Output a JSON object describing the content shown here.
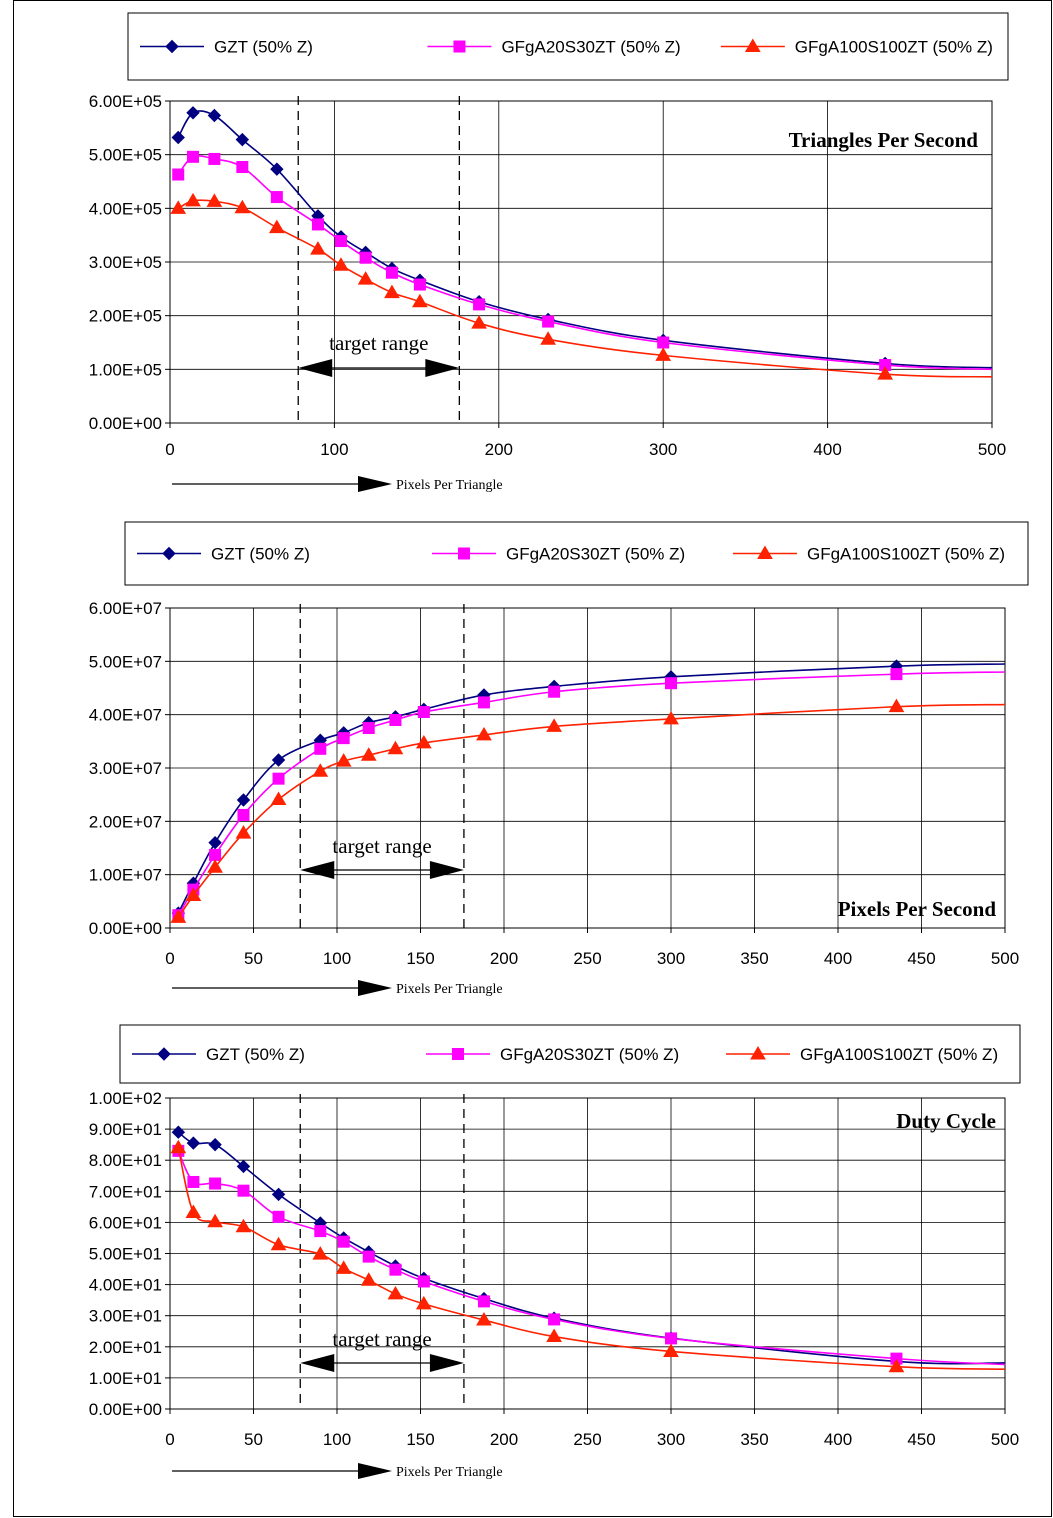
{
  "colors": {
    "series": [
      "#000080",
      "#FF00FF",
      "#FF2200"
    ],
    "grid": "#000000",
    "text": "#000000"
  },
  "chart_data": [
    {
      "type": "line",
      "title": "Triangles Per Second",
      "xlabel": "Pixels Per Triangle",
      "ylabel": "",
      "xlim": [
        0,
        500
      ],
      "ylim": [
        0,
        600000
      ],
      "xticks": [
        0,
        100,
        200,
        300,
        400,
        500
      ],
      "xtick_labels": [
        "0",
        "100",
        "200",
        "300",
        "400",
        "500"
      ],
      "yticks": [
        0,
        100000,
        200000,
        300000,
        400000,
        500000,
        600000
      ],
      "ytick_labels": [
        "0.00E+00",
        "1.00E+05",
        "2.00E+05",
        "3.00E+05",
        "4.00E+05",
        "5.00E+05",
        "6.00E+05"
      ],
      "grid": true,
      "legend": "top",
      "target_range": {
        "label": "target range",
        "from": 78,
        "to": 176
      },
      "x": [
        5,
        14,
        27,
        44,
        65,
        90,
        104,
        119,
        135,
        152,
        188,
        230,
        300,
        435
      ],
      "series": [
        {
          "name": "GZT (50% Z)",
          "marker": "diamond",
          "values": [
            532000,
            578000,
            573000,
            528000,
            473000,
            386000,
            347000,
            318000,
            288000,
            266000,
            226000,
            193000,
            154000,
            111000
          ],
          "tail": 103000
        },
        {
          "name": "GFgA20S30ZT (50% Z)",
          "marker": "square",
          "values": [
            463000,
            496000,
            492000,
            477000,
            421000,
            370000,
            339000,
            308000,
            280000,
            258000,
            221000,
            189000,
            150000,
            108000
          ],
          "tail": 100000
        },
        {
          "name": "GFgA100S100ZT (50% Z)",
          "marker": "triangle",
          "values": [
            400000,
            414000,
            413000,
            401000,
            364000,
            324000,
            294000,
            268000,
            243000,
            226000,
            186000,
            156000,
            126000,
            91000
          ],
          "tail": 86000
        }
      ]
    },
    {
      "type": "line",
      "title": "Pixels Per Second",
      "xlabel": "Pixels Per Triangle",
      "ylabel": "",
      "xlim": [
        0,
        500
      ],
      "ylim": [
        0,
        60000000
      ],
      "xticks": [
        0,
        50,
        100,
        150,
        200,
        250,
        300,
        350,
        400,
        450,
        500
      ],
      "xtick_labels": [
        "0",
        "50",
        "100",
        "150",
        "200",
        "250",
        "300",
        "350",
        "400",
        "450",
        "500"
      ],
      "yticks": [
        0,
        10000000,
        20000000,
        30000000,
        40000000,
        50000000,
        60000000
      ],
      "ytick_labels": [
        "0.00E+00",
        "1.00E+07",
        "2.00E+07",
        "3.00E+07",
        "4.00E+07",
        "5.00E+07",
        "6.00E+07"
      ],
      "grid": true,
      "legend": "top",
      "target_range": {
        "label": "target range",
        "from": 78,
        "to": 176
      },
      "x": [
        5,
        14,
        27,
        44,
        65,
        90,
        104,
        119,
        135,
        152,
        188,
        230,
        300,
        435
      ],
      "series": [
        {
          "name": "GZT (50% Z)",
          "marker": "diamond",
          "values": [
            2800000,
            8400000,
            16000000,
            24000000,
            31500000,
            35200000,
            36600000,
            38500000,
            39600000,
            41000000,
            43700000,
            45300000,
            47100000,
            49100000
          ],
          "tail": 49500000
        },
        {
          "name": "GFgA20S30ZT (50% Z)",
          "marker": "square",
          "values": [
            2400000,
            7200000,
            13700000,
            21200000,
            28000000,
            33600000,
            35600000,
            37500000,
            39000000,
            40500000,
            42300000,
            44300000,
            45900000,
            47600000
          ],
          "tail": 48000000
        },
        {
          "name": "GFgA100S100ZT (50% Z)",
          "marker": "triangle",
          "values": [
            2000000,
            6100000,
            11400000,
            17800000,
            24100000,
            29400000,
            31300000,
            32400000,
            33600000,
            34700000,
            36200000,
            37800000,
            39200000,
            41500000
          ],
          "tail": 41900000
        }
      ]
    },
    {
      "type": "line",
      "title": "Duty Cycle",
      "xlabel": "Pixels Per Triangle",
      "ylabel": "",
      "xlim": [
        0,
        500
      ],
      "ylim": [
        0,
        100
      ],
      "xticks": [
        0,
        50,
        100,
        150,
        200,
        250,
        300,
        350,
        400,
        450,
        500
      ],
      "xtick_labels": [
        "0",
        "50",
        "100",
        "150",
        "200",
        "250",
        "300",
        "350",
        "400",
        "450",
        "500"
      ],
      "yticks": [
        0,
        10,
        20,
        30,
        40,
        50,
        60,
        70,
        80,
        90,
        100
      ],
      "ytick_labels": [
        "0.00E+00",
        "1.00E+01",
        "2.00E+01",
        "3.00E+01",
        "4.00E+01",
        "5.00E+01",
        "6.00E+01",
        "7.00E+01",
        "8.00E+01",
        "9.00E+01",
        "1.00E+02"
      ],
      "grid": true,
      "legend": "top",
      "target_range": {
        "label": "target range",
        "from": 78,
        "to": 176
      },
      "x": [
        5,
        14,
        27,
        44,
        65,
        90,
        104,
        119,
        135,
        152,
        188,
        230,
        300,
        435
      ],
      "series": [
        {
          "name": "GZT (50% Z)",
          "marker": "diamond",
          "values": [
            89,
            85.5,
            85,
            78,
            69,
            59.8,
            55,
            50.5,
            46,
            42,
            35.5,
            29.2,
            22.8,
            15.3
          ],
          "tail": 14.8
        },
        {
          "name": "GFgA20S30ZT (50% Z)",
          "marker": "square",
          "values": [
            83,
            73,
            72.5,
            70.2,
            61.8,
            57.2,
            53.8,
            49,
            44.8,
            41,
            34.6,
            28.8,
            22.7,
            16.2
          ],
          "tail": 14.3
        },
        {
          "name": "GFgA100S100ZT (50% Z)",
          "marker": "triangle",
          "values": [
            84,
            63.2,
            60.2,
            58.6,
            52.8,
            49.8,
            45.2,
            41.4,
            37,
            33.8,
            28.6,
            23.3,
            18.5,
            13.6
          ],
          "tail": 12.8
        }
      ]
    }
  ]
}
